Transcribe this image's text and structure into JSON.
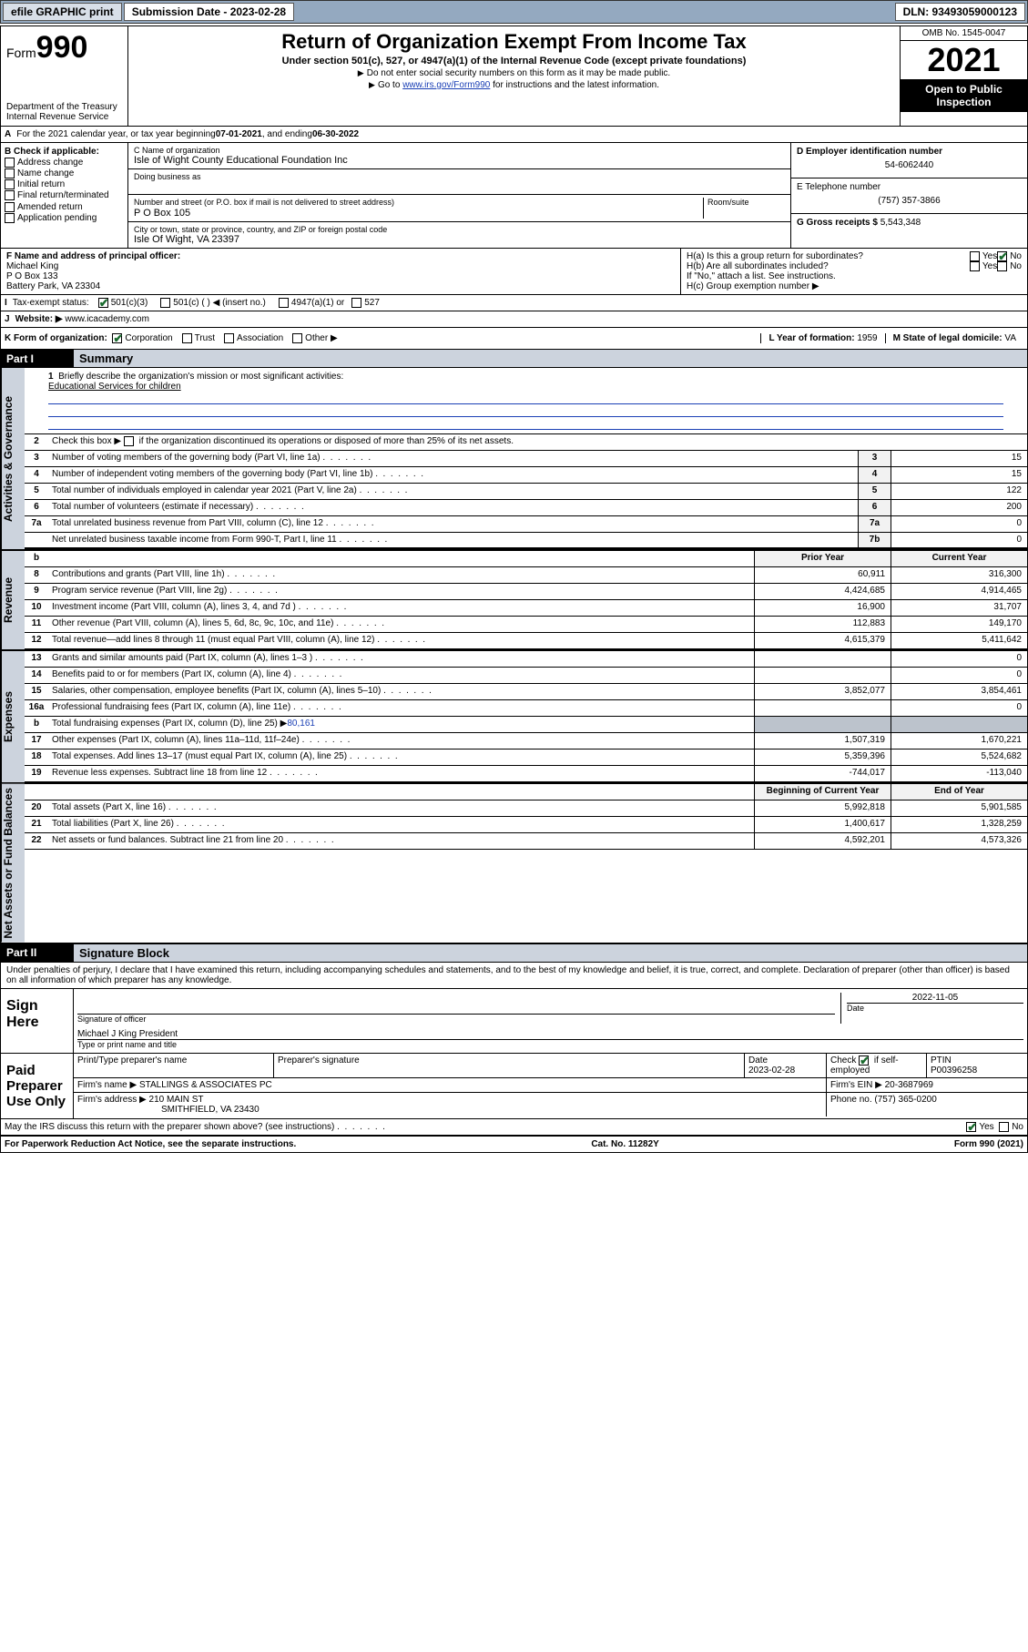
{
  "topbar": {
    "efile": "efile GRAPHIC print",
    "sub_label": "Submission Date - 2023-02-28",
    "dln": "DLN: 93493059000123"
  },
  "header": {
    "form_word": "Form",
    "form_num": "990",
    "title": "Return of Organization Exempt From Income Tax",
    "sub": "Under section 501(c), 527, or 4947(a)(1) of the Internal Revenue Code (except private foundations)",
    "note1": "Do not enter social security numbers on this form as it may be made public.",
    "note2_pre": "Go to ",
    "note2_link": "www.irs.gov/Form990",
    "note2_post": " for instructions and the latest information.",
    "dept": "Department of the Treasury",
    "irs": "Internal Revenue Service",
    "omb": "OMB No. 1545-0047",
    "year": "2021",
    "open": "Open to Public Inspection"
  },
  "line_a": {
    "text_pre": "For the 2021 calendar year, or tax year beginning ",
    "begin": "07-01-2021",
    "mid": " , and ending ",
    "end": "06-30-2022"
  },
  "section_b": {
    "label": "B Check if applicable:",
    "opts": [
      "Address change",
      "Name change",
      "Initial return",
      "Final return/terminated",
      "Amended return",
      "Application pending"
    ]
  },
  "section_c": {
    "name_label": "C Name of organization",
    "name": "Isle of Wight County Educational Foundation Inc",
    "dba_label": "Doing business as",
    "dba": "",
    "addr_label": "Number and street (or P.O. box if mail is not delivered to street address)",
    "room_label": "Room/suite",
    "addr": "P O Box 105",
    "city_label": "City or town, state or province, country, and ZIP or foreign postal code",
    "city": "Isle Of Wight, VA  23397"
  },
  "section_d": {
    "label": "D Employer identification number",
    "val": "54-6062440"
  },
  "section_e": {
    "label": "E Telephone number",
    "val": "(757) 357-3866"
  },
  "section_g": {
    "label": "G Gross receipts $",
    "val": "5,543,348"
  },
  "section_f": {
    "label": "F  Name and address of principal officer:",
    "l1": "Michael King",
    "l2": "P O Box 133",
    "l3": "Battery Park, VA  23304"
  },
  "section_h": {
    "ha": "H(a)  Is this a group return for subordinates?",
    "hb": "H(b)  Are all subordinates included?",
    "hb_note": "If \"No,\" attach a list. See instructions.",
    "hc": "H(c)  Group exemption number ▶",
    "yes": "Yes",
    "no": "No"
  },
  "section_i": {
    "label": "Tax-exempt status:",
    "o1": "501(c)(3)",
    "o2": "501(c) (  ) ◀ (insert no.)",
    "o3": "4947(a)(1) or",
    "o4": "527"
  },
  "section_j": {
    "label": "Website: ▶",
    "val": "www.icacademy.com"
  },
  "section_k": {
    "label": "K Form of organization:",
    "o1": "Corporation",
    "o2": "Trust",
    "o3": "Association",
    "o4": "Other ▶"
  },
  "section_l": {
    "label": "L Year of formation:",
    "val": "1959"
  },
  "section_m": {
    "label": "M State of legal domicile:",
    "val": "VA"
  },
  "part1": {
    "hdr": "Part I",
    "title": "Summary"
  },
  "mission": {
    "num": "1",
    "label": "Briefly describe the organization's mission or most significant activities:",
    "text": "Educational Services for children"
  },
  "line2": {
    "num": "2",
    "txt": "Check this box ▶",
    "post": "if the organization discontinued its operations or disposed of more than 25% of its net assets."
  },
  "gov_rows": [
    {
      "n": "3",
      "t": "Number of voting members of the governing body (Part VI, line 1a)",
      "box": "3",
      "v": "15"
    },
    {
      "n": "4",
      "t": "Number of independent voting members of the governing body (Part VI, line 1b)",
      "box": "4",
      "v": "15"
    },
    {
      "n": "5",
      "t": "Total number of individuals employed in calendar year 2021 (Part V, line 2a)",
      "box": "5",
      "v": "122"
    },
    {
      "n": "6",
      "t": "Total number of volunteers (estimate if necessary)",
      "box": "6",
      "v": "200"
    },
    {
      "n": "7a",
      "t": "Total unrelated business revenue from Part VIII, column (C), line 12",
      "box": "7a",
      "v": "0"
    },
    {
      "n": "",
      "t": "Net unrelated business taxable income from Form 990-T, Part I, line 11",
      "box": "7b",
      "v": "0"
    }
  ],
  "twocol_hdr": {
    "b": "b",
    "prior": "Prior Year",
    "current": "Current Year"
  },
  "revenue_rows": [
    {
      "n": "8",
      "t": "Contributions and grants (Part VIII, line 1h)",
      "p": "60,911",
      "c": "316,300"
    },
    {
      "n": "9",
      "t": "Program service revenue (Part VIII, line 2g)",
      "p": "4,424,685",
      "c": "4,914,465"
    },
    {
      "n": "10",
      "t": "Investment income (Part VIII, column (A), lines 3, 4, and 7d )",
      "p": "16,900",
      "c": "31,707"
    },
    {
      "n": "11",
      "t": "Other revenue (Part VIII, column (A), lines 5, 6d, 8c, 9c, 10c, and 11e)",
      "p": "112,883",
      "c": "149,170"
    },
    {
      "n": "12",
      "t": "Total revenue—add lines 8 through 11 (must equal Part VIII, column (A), line 12)",
      "p": "4,615,379",
      "c": "5,411,642"
    }
  ],
  "expense_rows": [
    {
      "n": "13",
      "t": "Grants and similar amounts paid (Part IX, column (A), lines 1–3 )",
      "p": "",
      "c": "0"
    },
    {
      "n": "14",
      "t": "Benefits paid to or for members (Part IX, column (A), line 4)",
      "p": "",
      "c": "0"
    },
    {
      "n": "15",
      "t": "Salaries, other compensation, employee benefits (Part IX, column (A), lines 5–10)",
      "p": "3,852,077",
      "c": "3,854,461"
    },
    {
      "n": "16a",
      "t": "Professional fundraising fees (Part IX, column (A), line 11e)",
      "p": "",
      "c": "0"
    }
  ],
  "line16b": {
    "n": "b",
    "t": "Total fundraising expenses (Part IX, column (D), line 25) ▶",
    "v": "80,161"
  },
  "expense_rows2": [
    {
      "n": "17",
      "t": "Other expenses (Part IX, column (A), lines 11a–11d, 11f–24e)",
      "p": "1,507,319",
      "c": "1,670,221"
    },
    {
      "n": "18",
      "t": "Total expenses. Add lines 13–17 (must equal Part IX, column (A), line 25)",
      "p": "5,359,396",
      "c": "5,524,682"
    },
    {
      "n": "19",
      "t": "Revenue less expenses. Subtract line 18 from line 12",
      "p": "-744,017",
      "c": "-113,040"
    }
  ],
  "net_hdr": {
    "prior": "Beginning of Current Year",
    "current": "End of Year"
  },
  "net_rows": [
    {
      "n": "20",
      "t": "Total assets (Part X, line 16)",
      "p": "5,992,818",
      "c": "5,901,585"
    },
    {
      "n": "21",
      "t": "Total liabilities (Part X, line 26)",
      "p": "1,400,617",
      "c": "1,328,259"
    },
    {
      "n": "22",
      "t": "Net assets or fund balances. Subtract line 21 from line 20",
      "p": "4,592,201",
      "c": "4,573,326"
    }
  ],
  "vtabs": {
    "gov": "Activities & Governance",
    "rev": "Revenue",
    "exp": "Expenses",
    "net": "Net Assets or Fund Balances"
  },
  "part2": {
    "hdr": "Part II",
    "title": "Signature Block"
  },
  "sig": {
    "penalty": "Under penalties of perjury, I declare that I have examined this return, including accompanying schedules and statements, and to the best of my knowledge and belief, it is true, correct, and complete. Declaration of preparer (other than officer) is based on all information of which preparer has any knowledge.",
    "sign_here": "Sign Here",
    "sig_officer": "Signature of officer",
    "date": "Date",
    "date_val": "2022-11-05",
    "officer": "Michael J King President",
    "officer_lab": "Type or print name and title",
    "paid": "Paid Preparer Use Only",
    "pt_name": "Print/Type preparer's name",
    "pt_sig": "Preparer's signature",
    "pt_date": "Date",
    "pt_date_val": "2023-02-28",
    "pt_check": "Check",
    "pt_if": "if self-employed",
    "ptin_lab": "PTIN",
    "ptin": "P00396258",
    "firm_name_lab": "Firm's name    ▶",
    "firm_name": "STALLINGS & ASSOCIATES PC",
    "firm_ein_lab": "Firm's EIN ▶",
    "firm_ein": "20-3687969",
    "firm_addr_lab": "Firm's address ▶",
    "firm_addr1": "210 MAIN ST",
    "firm_addr2": "SMITHFIELD, VA  23430",
    "phone_lab": "Phone no.",
    "phone": "(757) 365-0200",
    "discuss": "May the IRS discuss this return with the preparer shown above? (see instructions)",
    "yes": "Yes",
    "no": "No"
  },
  "footer": {
    "left": "For Paperwork Reduction Act Notice, see the separate instructions.",
    "mid": "Cat. No. 11282Y",
    "right_pre": "Form ",
    "right_b": "990",
    "right_post": " (2021)"
  }
}
